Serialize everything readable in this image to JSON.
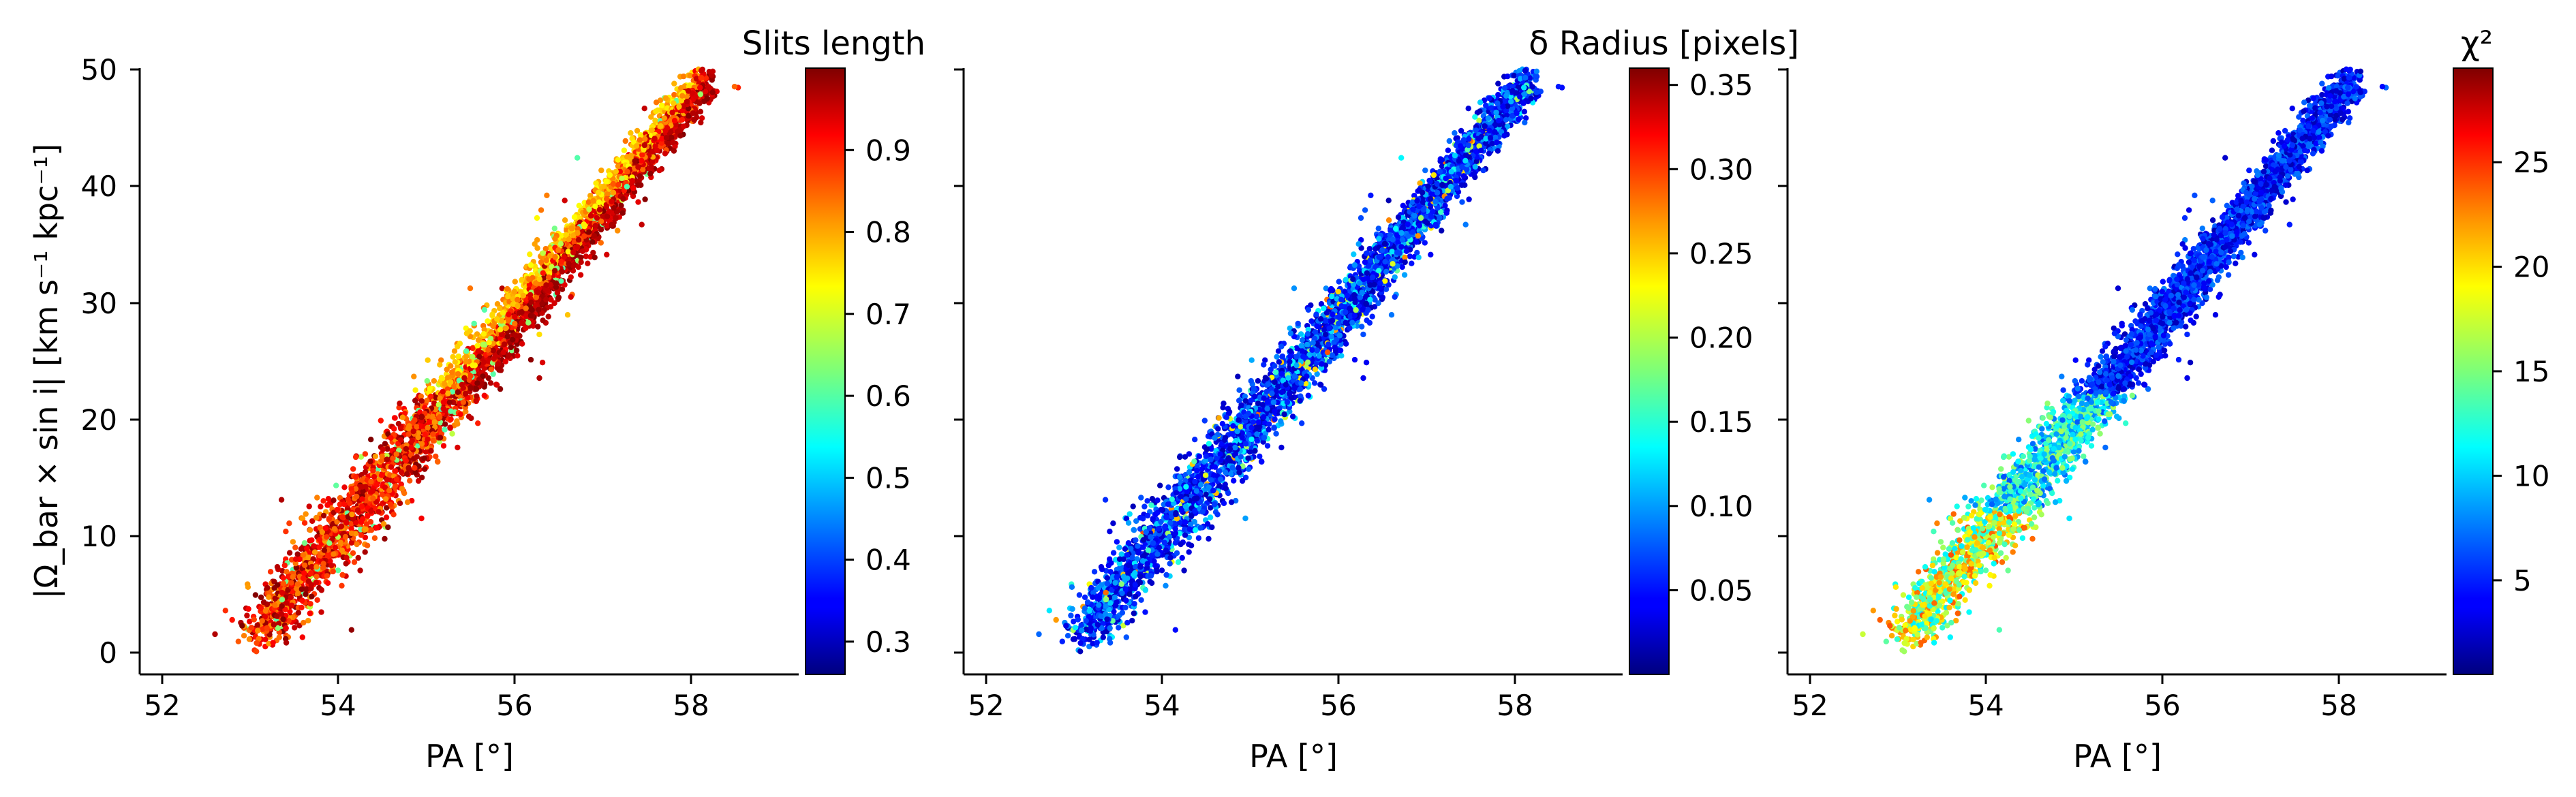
{
  "chart_data": [
    {
      "type": "scatter",
      "panel": "left",
      "xlabel": "PA [°]",
      "ylabel": "|Ω_bar × sin i|   [km s⁻¹ kpc⁻¹]",
      "xlim": [
        51.7,
        59.3
      ],
      "ylim": [
        -2,
        50
      ],
      "xticks": [
        "52",
        "54",
        "56",
        "58"
      ],
      "yticks": [
        "0",
        "10",
        "20",
        "30",
        "40",
        "50"
      ],
      "colorbar": {
        "title": "Slits length",
        "range": [
          0.26,
          1.0
        ],
        "ticks": [
          "0.3",
          "0.4",
          "0.5",
          "0.6",
          "0.7",
          "0.8",
          "0.9"
        ],
        "colormap": "jet"
      },
      "color_trend": "low PA/low Ω points red to dark red; upper-left edge of the band yellow-orange; scattered cyan outliers",
      "points": {
        "approx_count": 4000,
        "band_ridge": [
          [
            53.2,
            3
          ],
          [
            54.0,
            12
          ],
          [
            55.0,
            22
          ],
          [
            56.0,
            30
          ],
          [
            57.0,
            39
          ],
          [
            58.0,
            46
          ],
          [
            58.4,
            49
          ]
        ]
      },
      "grid": false
    },
    {
      "type": "scatter",
      "panel": "middle",
      "xlabel": "PA [°]",
      "xlim": [
        51.7,
        59.3
      ],
      "ylim": [
        -2,
        50
      ],
      "xticks": [
        "52",
        "54",
        "56",
        "58"
      ],
      "colorbar": {
        "title": "δ Radius [pixels]",
        "range": [
          0.0,
          0.36
        ],
        "ticks": [
          "0.05",
          "0.10",
          "0.15",
          "0.20",
          "0.25",
          "0.30",
          "0.35"
        ],
        "colormap": "jet"
      },
      "color_trend": "mostly dark blue to cyan, few green/yellow points",
      "grid": false
    },
    {
      "type": "scatter",
      "panel": "right",
      "xlabel": "PA [°]",
      "xlim": [
        51.7,
        59.3
      ],
      "ylim": [
        -2,
        50
      ],
      "xticks": [
        "52",
        "54",
        "56",
        "58"
      ],
      "colorbar": {
        "title": "χ²",
        "range": [
          0.5,
          29.5
        ],
        "ticks": [
          "5",
          "10",
          "15",
          "20",
          "25"
        ],
        "colormap": "jet"
      },
      "color_trend": "low-PA end of band cyan to yellow/orange, rest dark blue",
      "grid": false
    }
  ]
}
